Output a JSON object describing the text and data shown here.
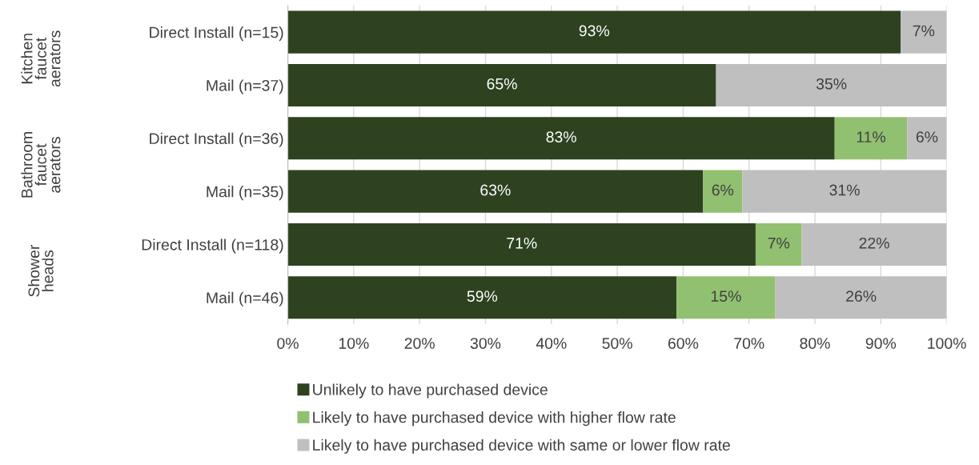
{
  "chart_data": {
    "type": "bar",
    "orientation": "horizontal",
    "stacked": true,
    "categories": [
      "Direct Install (n=15)",
      "Mail (n=37)",
      "Direct Install (n=36)",
      "Mail (n=35)",
      "Direct Install (n=118)",
      "Mail (n=46)"
    ],
    "series": [
      {
        "name": "Unlikely to have purchased device",
        "color": "#2e4220",
        "values": [
          93,
          65,
          83,
          63,
          71,
          59
        ],
        "value_labels": [
          "93%",
          "65%",
          "83%",
          "63%",
          "71%",
          "59%"
        ]
      },
      {
        "name": "Likely to have purchased device with higher flow rate",
        "color": "#92c071",
        "values": [
          null,
          null,
          11,
          6,
          7,
          15
        ],
        "value_labels": [
          null,
          null,
          "11%",
          "6%",
          "7%",
          "15%"
        ]
      },
      {
        "name": "Likely to have purchased device with same or lower flow rate",
        "color": "#bfbfbf",
        "values": [
          7,
          35,
          6,
          31,
          22,
          26
        ],
        "value_labels": [
          "7%",
          "35%",
          "6%",
          "31%",
          "22%",
          "26%"
        ]
      }
    ],
    "xlim": [
      0,
      100
    ],
    "xticks": [
      {
        "value": 0,
        "label": "0%"
      },
      {
        "value": 10,
        "label": "10%"
      },
      {
        "value": 20,
        "label": "20%"
      },
      {
        "value": 30,
        "label": "30%"
      },
      {
        "value": 40,
        "label": "40%"
      },
      {
        "value": 50,
        "label": "50%"
      },
      {
        "value": 60,
        "label": "60%"
      },
      {
        "value": 70,
        "label": "70%"
      },
      {
        "value": 80,
        "label": "80%"
      },
      {
        "value": 90,
        "label": "90%"
      },
      {
        "value": 100,
        "label": "100%"
      }
    ],
    "annotations": [
      "Kitchen\nfaucet\naerators",
      "Bathroom\nfaucet\naerators",
      "Shower\nheads"
    ],
    "grid": "x",
    "legend": "bottom"
  }
}
